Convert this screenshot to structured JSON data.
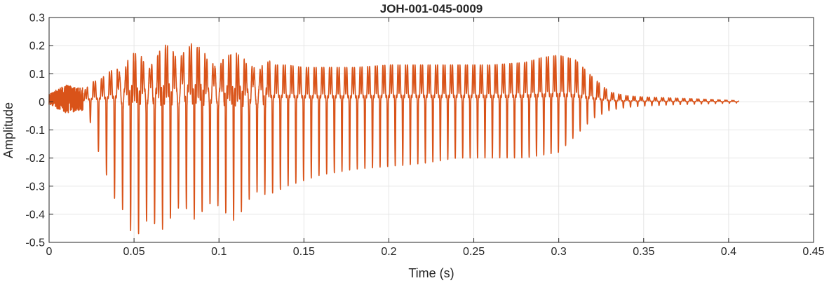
{
  "chart_data": {
    "type": "line",
    "title": "JOH-001-045-0009",
    "xlabel": "Time (s)",
    "ylabel": "Amplitude",
    "xlim": [
      0,
      0.45
    ],
    "ylim": [
      -0.5,
      0.3
    ],
    "xticks": [
      0,
      0.05,
      0.1,
      0.15,
      0.2,
      0.25,
      0.3,
      0.35,
      0.4,
      0.45
    ],
    "xtick_labels": [
      "0",
      "0.05",
      "0.1",
      "0.15",
      "0.2",
      "0.25",
      "0.3",
      "0.35",
      "0.4",
      "0.45"
    ],
    "yticks": [
      0.3,
      0.2,
      0.1,
      0,
      -0.1,
      -0.2,
      -0.3,
      -0.4,
      -0.5
    ],
    "ytick_labels": [
      "0.3",
      "0.2",
      "0.1",
      "0",
      "-0.1",
      "-0.2",
      "-0.3",
      "-0.4",
      "-0.5"
    ],
    "grid": true,
    "line_color": "#D95319",
    "series": [
      {
        "envelope": {
          "t": [
            0,
            0.01,
            0.02,
            0.025,
            0.03,
            0.035,
            0.04,
            0.045,
            0.05,
            0.055,
            0.06,
            0.065,
            0.07,
            0.075,
            0.08,
            0.085,
            0.09,
            0.1,
            0.11,
            0.12,
            0.13,
            0.14,
            0.15,
            0.16,
            0.18,
            0.2,
            0.22,
            0.24,
            0.26,
            0.28,
            0.29,
            0.3,
            0.31,
            0.32,
            0.33,
            0.34,
            0.35,
            0.37,
            0.39,
            0.406
          ],
          "max": [
            0.02,
            0.05,
            0.04,
            0.08,
            0.09,
            0.12,
            0.14,
            0.15,
            0.16,
            0.17,
            0.17,
            0.18,
            0.2,
            0.2,
            0.22,
            0.21,
            0.18,
            0.17,
            0.16,
            0.16,
            0.15,
            0.15,
            0.14,
            0.14,
            0.14,
            0.15,
            0.15,
            0.15,
            0.15,
            0.16,
            0.18,
            0.19,
            0.17,
            0.1,
            0.04,
            0.025,
            0.02,
            0.015,
            0.01,
            0.005
          ],
          "min": [
            -0.02,
            -0.03,
            -0.04,
            -0.08,
            -0.2,
            -0.28,
            -0.37,
            -0.42,
            -0.45,
            -0.45,
            -0.45,
            -0.43,
            -0.41,
            -0.4,
            -0.39,
            -0.39,
            -0.38,
            -0.39,
            -0.39,
            -0.35,
            -0.33,
            -0.3,
            -0.28,
            -0.26,
            -0.24,
            -0.23,
            -0.22,
            -0.2,
            -0.2,
            -0.2,
            -0.19,
            -0.18,
            -0.12,
            -0.06,
            -0.03,
            -0.02,
            -0.015,
            -0.01,
            -0.007,
            -0.004
          ]
        },
        "pitch_period_s": [
          0.0048,
          0.0041
        ]
      }
    ]
  }
}
